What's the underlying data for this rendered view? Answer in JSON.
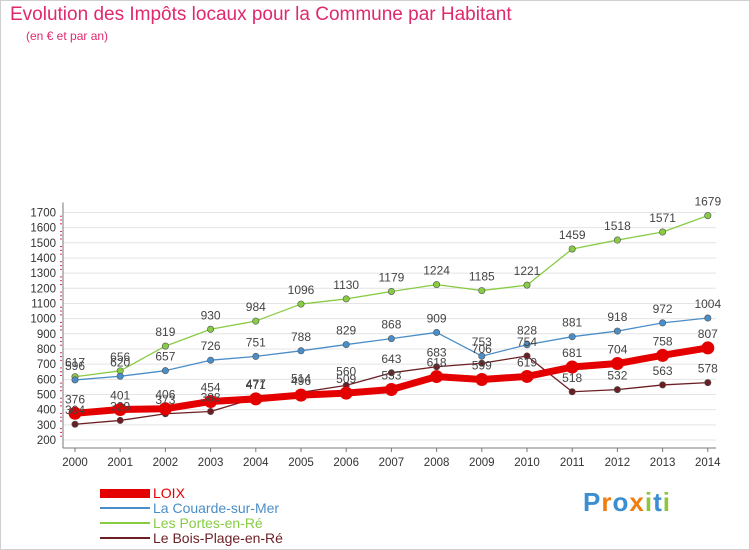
{
  "header": {
    "title": "Evolution des Impôts locaux pour la Commune par Habitant",
    "subtitle": "(en € et par an)"
  },
  "colors": {
    "title": "#e0286e",
    "axis": "#7a7a7a",
    "grid": "#e4e4e4",
    "tick_marks": "#e0286e"
  },
  "logo": {
    "text": "Proxiti",
    "colors": [
      "#3b8fd1",
      "#f07d0f",
      "#3b8fd1",
      "#f07d0f",
      "#8cc63f",
      "#3b8fd1",
      "#8cc63f"
    ]
  },
  "chart_data": {
    "type": "line",
    "x": [
      2000,
      2001,
      2002,
      2003,
      2004,
      2005,
      2006,
      2007,
      2008,
      2009,
      2010,
      2011,
      2012,
      2013,
      2014
    ],
    "ylim": [
      200,
      1700
    ],
    "yticks": [
      200,
      300,
      400,
      500,
      600,
      700,
      800,
      900,
      1000,
      1100,
      1200,
      1300,
      1400,
      1500,
      1600,
      1700
    ],
    "grid": "horizontal",
    "legend_position": "bottom-left",
    "series": [
      {
        "name": "LOIX",
        "color": "#e50000",
        "width": 7,
        "marker": 6.5,
        "values": [
          376,
          401,
          406,
          454,
          471,
          496,
          509,
          533,
          618,
          599,
          619,
          681,
          704,
          758,
          807
        ]
      },
      {
        "name": "La Couarde-sur-Mer",
        "color": "#4a8ec8",
        "width": 1.3,
        "marker": 3.2,
        "values": [
          596,
          620,
          657,
          726,
          751,
          788,
          829,
          868,
          909,
          753,
          828,
          881,
          918,
          972,
          1004
        ]
      },
      {
        "name": "Les Portes-en-Ré",
        "color": "#88cc44",
        "width": 1.3,
        "marker": 3.2,
        "values": [
          617,
          656,
          819,
          930,
          984,
          1096,
          1130,
          1179,
          1224,
          1185,
          1221,
          1459,
          1518,
          1571,
          1679
        ]
      },
      {
        "name": "Le Bois-Plage-en-Ré",
        "color": "#6b1f24",
        "width": 1.3,
        "marker": 3.2,
        "values": [
          304,
          329,
          373,
          388,
          477,
          514,
          560,
          643,
          683,
          706,
          754,
          518,
          532,
          563,
          578
        ]
      }
    ]
  }
}
